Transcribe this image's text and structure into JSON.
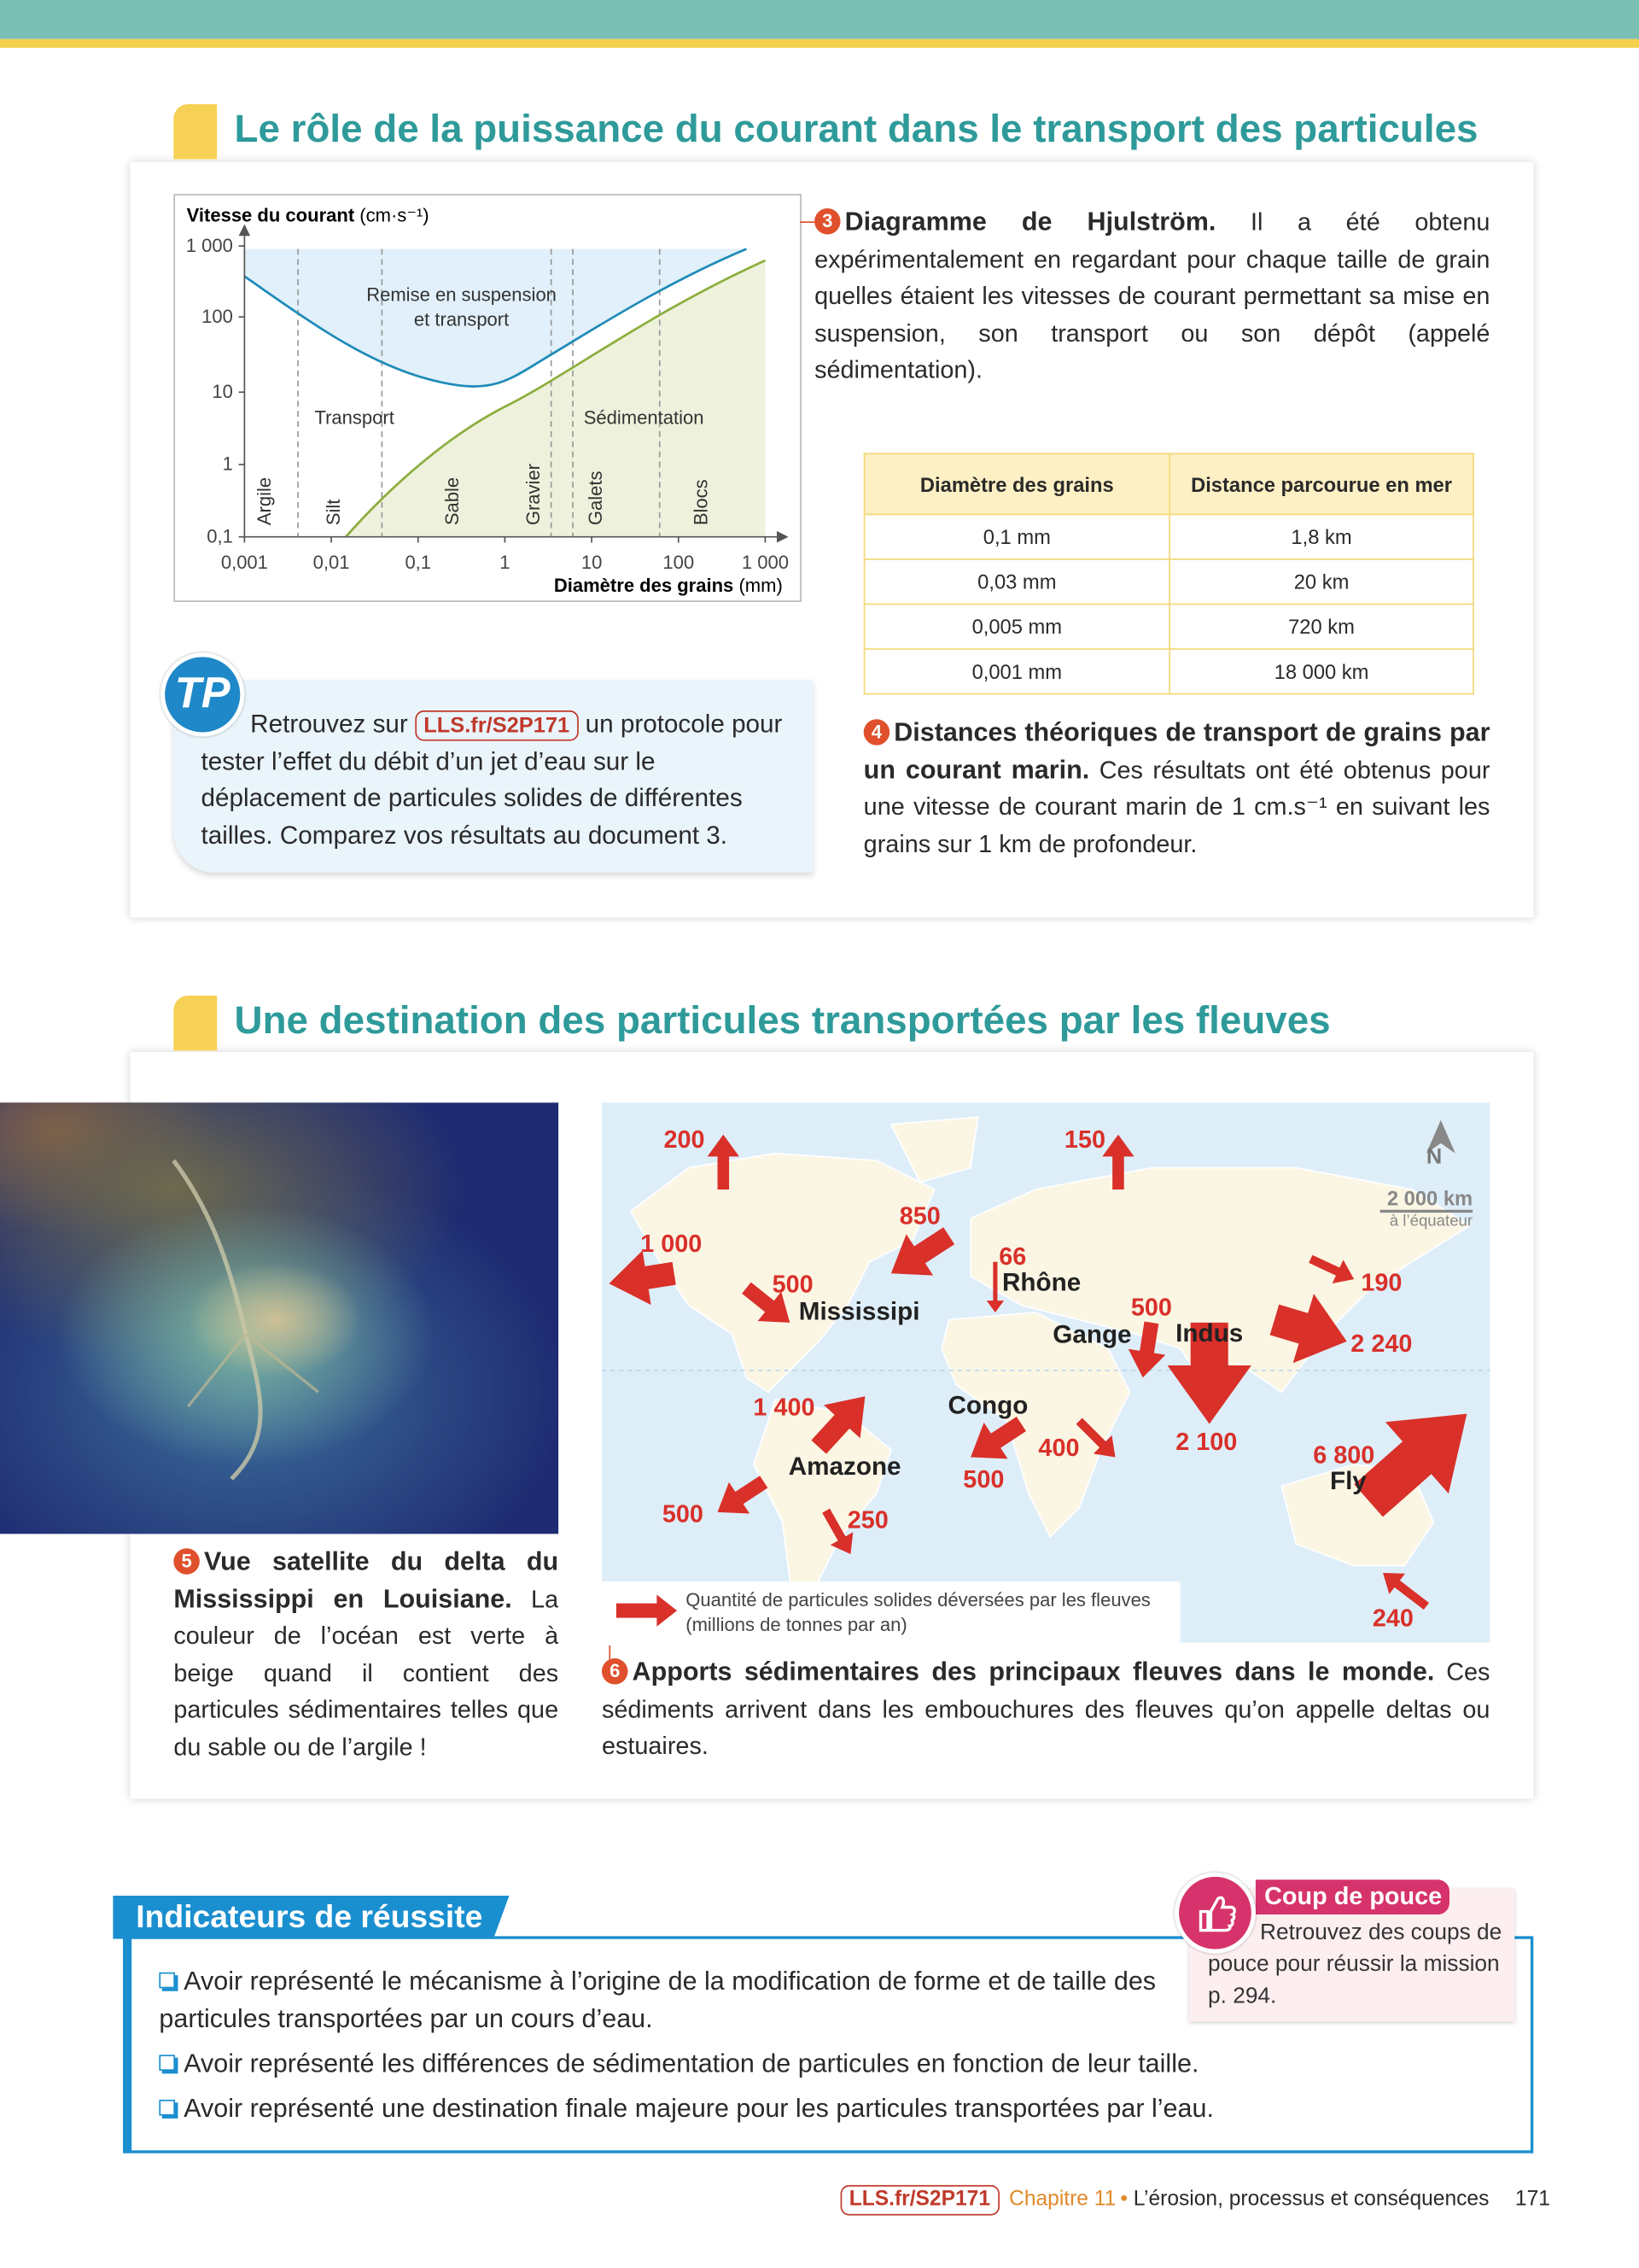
{
  "section1": {
    "title": "Le rôle de la puissance du courant dans le transport des particules",
    "diagram": {
      "y_title": "Vitesse du courant",
      "y_unit": "(cm·s⁻¹)",
      "y_ticks": [
        "1 000",
        "100",
        "10",
        "1",
        "0,1"
      ],
      "x_ticks": [
        "0,001",
        "0,01",
        "0,1",
        "1",
        "10",
        "100",
        "1 000"
      ],
      "x_title": "Diamètre des grains",
      "x_unit": "(mm)",
      "zone_suspension": [
        "Remise en suspension",
        "et transport"
      ],
      "zone_transport": "Transport",
      "zone_sedimentation": "Sédimentation",
      "grains": [
        "Argile",
        "Silt",
        "Sable",
        "Gravier",
        "Galets",
        "Blocs"
      ]
    },
    "doc3": {
      "number": "3",
      "title": "Diagramme de Hjulström.",
      "text": "Il a été obtenu expérimentalement en regardant pour chaque taille de grain quelles étaient les vitesses de courant permettant sa mise en suspension, son transport ou son dépôt (appelé sédimentation)."
    },
    "table": {
      "headers": [
        "Diamètre des grains",
        "Distance parcourue en mer"
      ],
      "rows": [
        [
          "0,1 mm",
          "1,8 km"
        ],
        [
          "0,03 mm",
          "20 km"
        ],
        [
          "0,005 mm",
          "720 km"
        ],
        [
          "0,001 mm",
          "18 000 km"
        ]
      ]
    },
    "doc4": {
      "number": "4",
      "title": "Distances théoriques de transport de grains par un courant marin.",
      "text": "Ces résultats ont été obtenus pour une vitesse de courant marin de 1 cm.s⁻¹ en suivant les grains sur 1 km de profondeur."
    },
    "tp": {
      "badge": "TP",
      "before": "Retrouvez sur",
      "link": "LLS.fr/S2P171",
      "after": "un protocole pour tester l’effet du débit d’un jet d’eau sur le déplacement de particules solides de différentes tailles. Comparez vos résultats au document 3."
    }
  },
  "section2": {
    "title": "Une destination des particules transportées par les fleuves",
    "doc5": {
      "number": "5",
      "title": "Vue satellite du delta du Mississippi en Louisiane.",
      "text": "La couleur de l’océan est verte à beige quand il contient des particules sédimentaires telles que du sable ou de l’argile !"
    },
    "map": {
      "compass": "N",
      "scale": "2 000 km",
      "scale_note": "à l’équateur",
      "amounts": [
        "200",
        "150",
        "850",
        "1 000",
        "66",
        "500",
        "190",
        "500",
        "2 240",
        "1 400",
        "400",
        "2 100",
        "6 800",
        "500",
        "500",
        "250",
        "240"
      ],
      "rivers": [
        "Rhône",
        "Mississipi",
        "Gange",
        "Indus",
        "Congo",
        "Amazone",
        "Fly"
      ],
      "legend": [
        "Quantité de particules solides déversées par les fleuves",
        "(millions de tonnes par an)"
      ]
    },
    "doc6": {
      "number": "6",
      "title": "Apports sédimentaires des principaux fleuves dans le monde.",
      "text": "Ces sédiments arrivent dans les embouchures des fleuves qu’on appelle deltas ou estuaires."
    }
  },
  "indicators": {
    "title": "Indicateurs de réussite",
    "items": [
      "Avoir représenté le mécanisme à l’origine de la modification de forme et de taille des particules transportées par un cours d’eau.",
      "Avoir représenté les différences de sédimentation de particules en fonction de leur taille.",
      "Avoir représenté une destination finale majeure pour les particules transportées par l’eau."
    ]
  },
  "tip": {
    "title": "Coup de pouce",
    "text": "Retrouvez des coups de pouce pour réussir la mission p. 294."
  },
  "footer": {
    "link": "LLS.fr/S2P171",
    "chapter": "Chapitre 11",
    "title": "L’érosion, processus et conséquences",
    "page": "171"
  }
}
